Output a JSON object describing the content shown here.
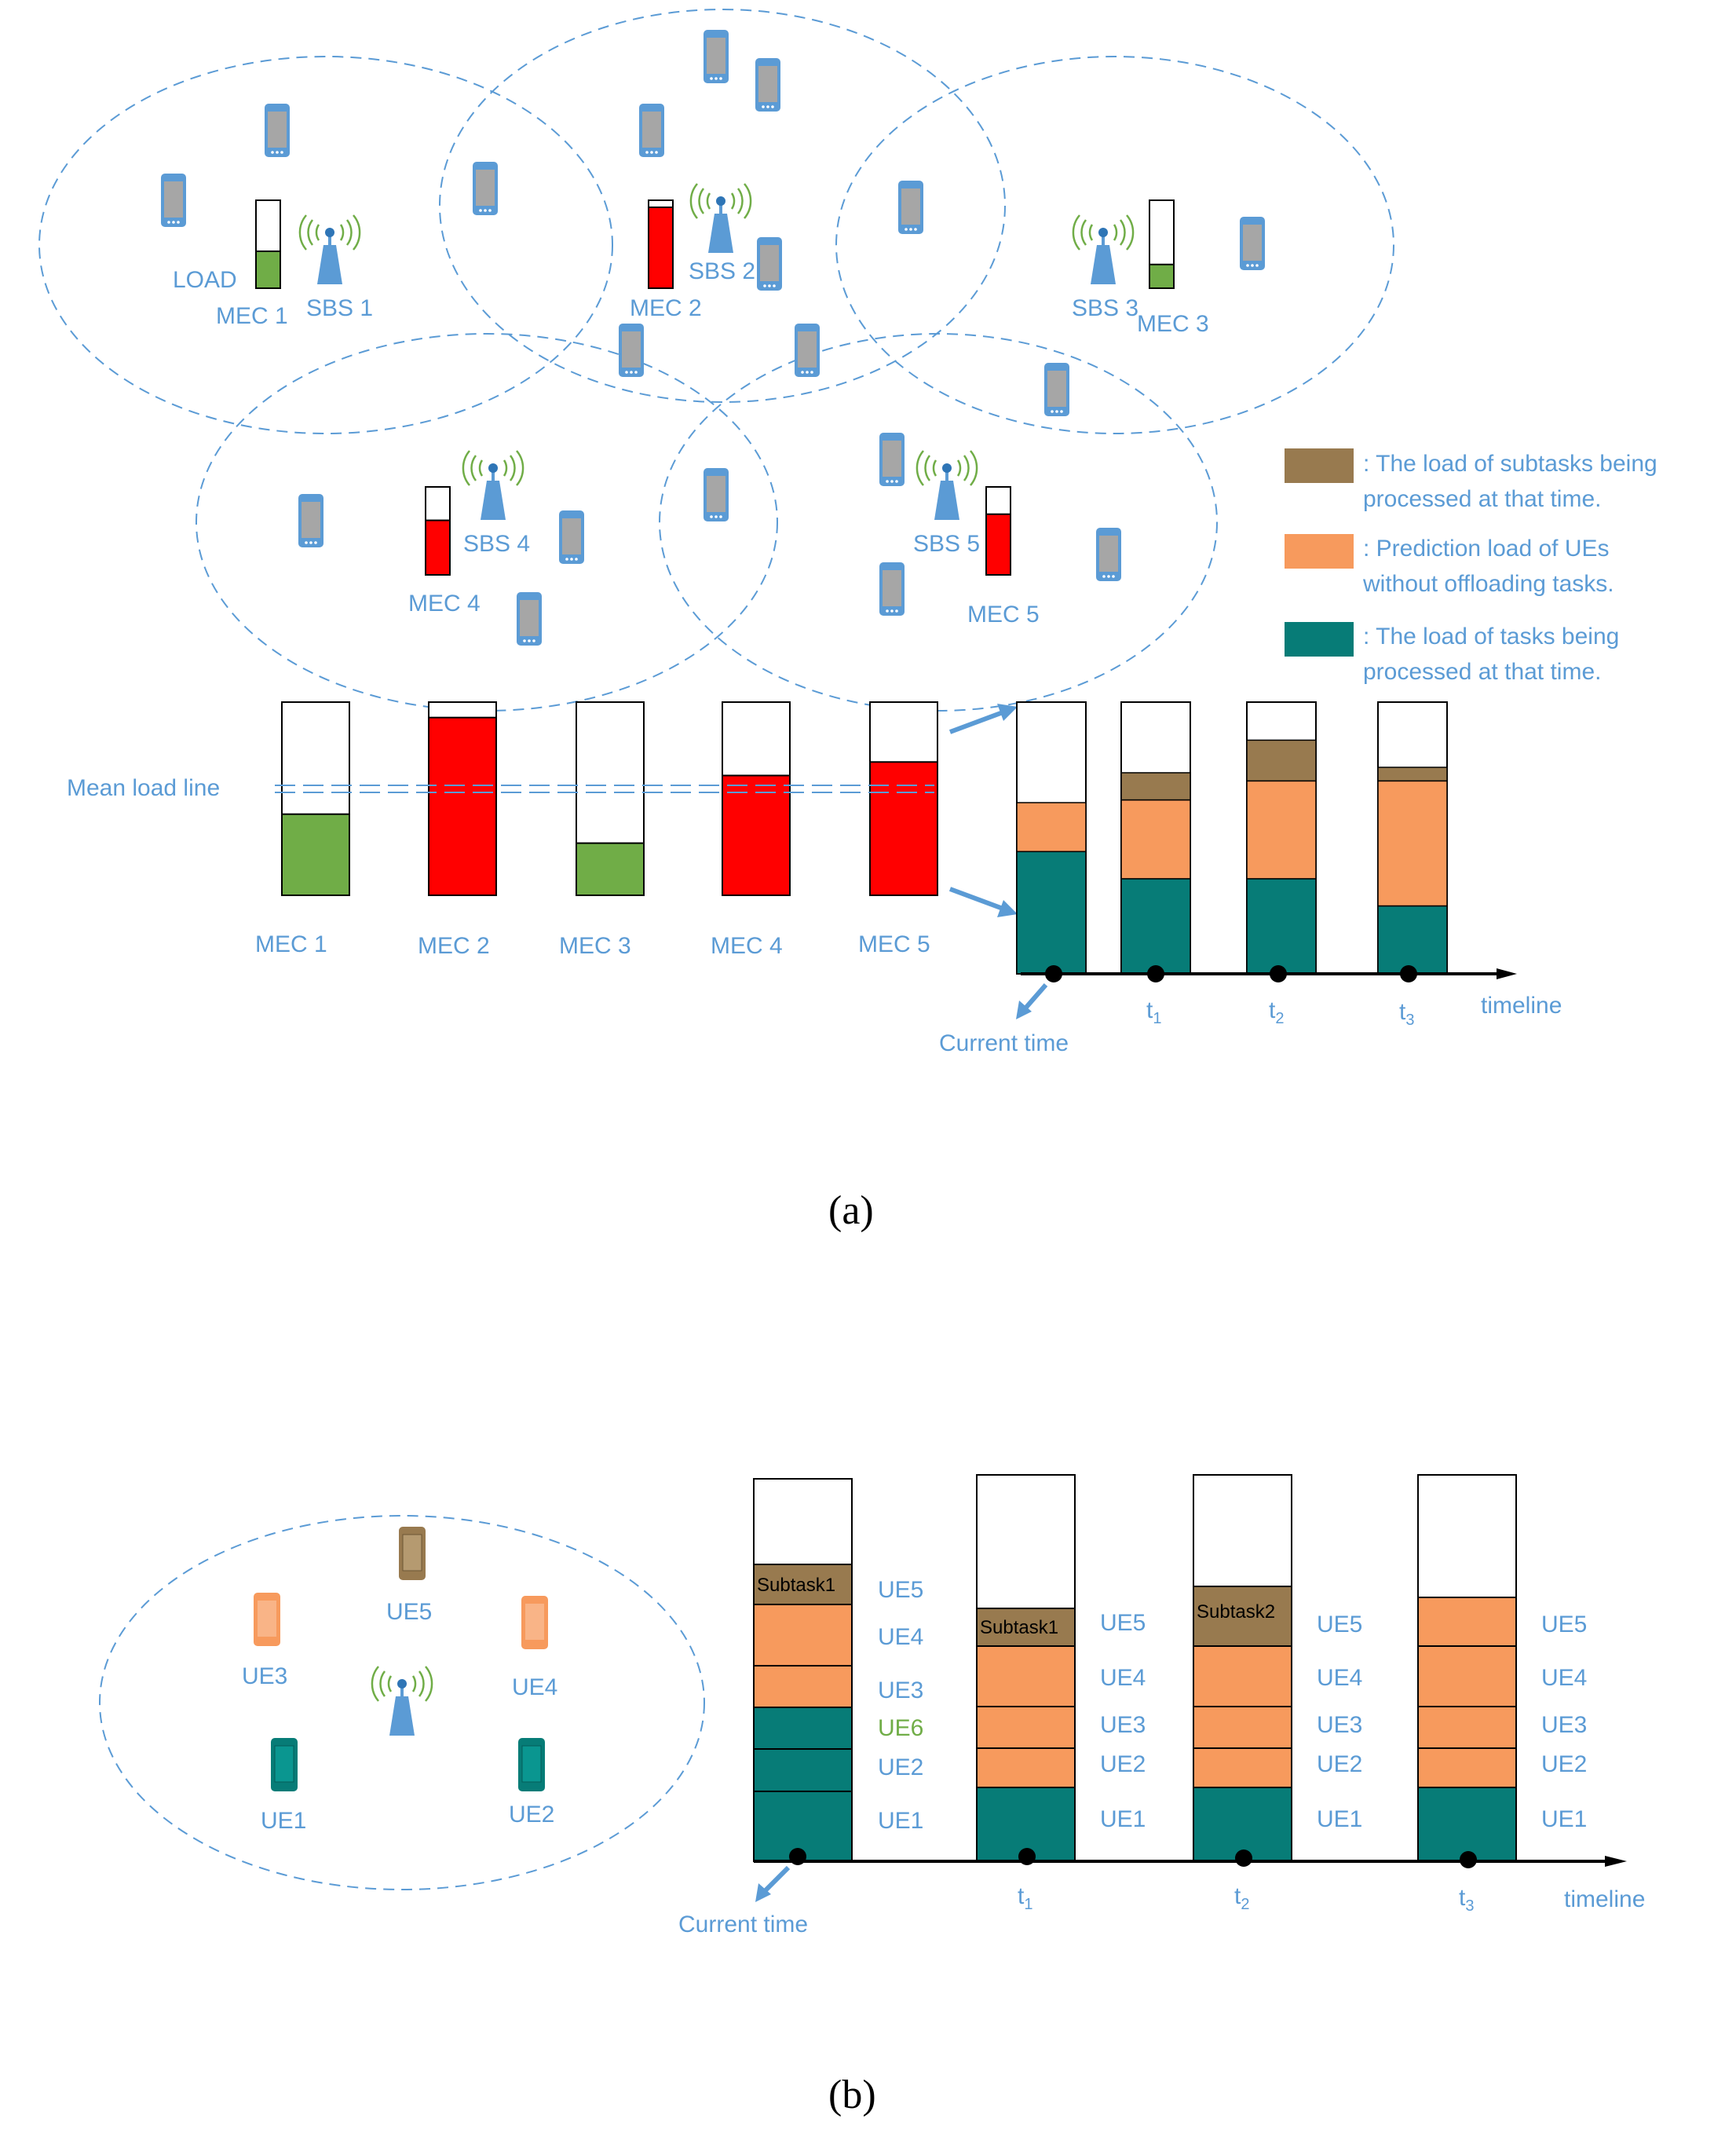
{
  "panel_a": {
    "mec_labels": [
      "MEC 1",
      "MEC 2",
      "MEC 3",
      "MEC 4",
      "MEC 5"
    ],
    "sbs_labels": [
      "SBS 1",
      "SBS 2",
      "SBS 3",
      "SBS 4",
      "SBS 5"
    ],
    "load_label": "LOAD",
    "mean_load_line": "Mean load line",
    "mec_loads": [
      0.42,
      0.92,
      0.27,
      0.62,
      0.69
    ],
    "load_colors": [
      "#70ad47",
      "#ff0000",
      "#70ad47",
      "#ff0000",
      "#ff0000"
    ],
    "legend": [
      {
        "color": "#987a4f",
        "line1": ": The load of subtasks being",
        "line2": "processed at that time."
      },
      {
        "color": "#f79a5d",
        "line1": ": Prediction load of UEs",
        "line2": "without offloading tasks."
      },
      {
        "color": "#077c77",
        "line1": ": The load of tasks being",
        "line2": "processed at that time."
      }
    ],
    "timeline_label": "timeline",
    "current_time": "Current time",
    "time_labels": [
      "t",
      "t",
      "t"
    ],
    "time_subscripts": [
      "1",
      "2",
      "3"
    ],
    "stack_segments": [
      {
        "teal": 0.45,
        "orange": 0.18,
        "brown": 0.0
      },
      {
        "teal": 0.35,
        "orange": 0.29,
        "brown": 0.1
      },
      {
        "teal": 0.35,
        "orange": 0.36,
        "brown": 0.15
      },
      {
        "teal": 0.25,
        "orange": 0.46,
        "brown": 0.05
      }
    ]
  },
  "panel_b": {
    "ue_labels": [
      "UE5",
      "UE3",
      "UE4",
      "UE1",
      "UE2"
    ],
    "col0_labels": [
      "UE5",
      "UE4",
      "UE3",
      "UE6",
      "UE2",
      "UE1"
    ],
    "col1_labels": [
      "UE5",
      "UE4",
      "UE3",
      "UE2",
      "UE1"
    ],
    "col2_labels": [
      "UE5",
      "UE4",
      "UE3",
      "UE2",
      "UE1"
    ],
    "col3_labels": [
      "UE5",
      "UE4",
      "UE3",
      "UE2",
      "UE1"
    ],
    "subtasks": [
      "Subtask1",
      "Subtask1",
      "Subtask2"
    ],
    "timeline_label": "timeline",
    "current_time": "Current time",
    "time_labels": [
      "t",
      "t",
      "t"
    ],
    "time_subscripts": [
      "1",
      "2",
      "3"
    ]
  },
  "captions": {
    "a": "(a)",
    "b": "(b)"
  },
  "colors": {
    "blue": "#5b9bd5",
    "teal": "#077c77",
    "orange": "#f79a5d",
    "brown": "#987a4f",
    "red": "#ff0000",
    "green": "#70ad47",
    "ue6_green": "#70ad47"
  }
}
